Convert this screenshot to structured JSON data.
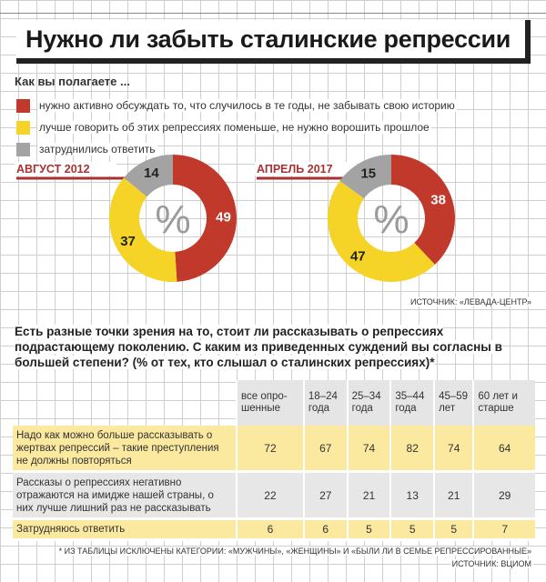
{
  "title": "Нужно ли забыть сталинские репрессии",
  "question": "Как вы полагаете ...",
  "colors": {
    "red": "#c0392b",
    "yellow": "#f5d327",
    "gray": "#a3a3a3"
  },
  "legend": [
    {
      "label": "нужно активно обсуждать то, что случилось в те годы, не забывать свою историю",
      "color": "#c0392b"
    },
    {
      "label": "лучше говорить об этих репрессиях поменьше, не нужно ворошить прошлое",
      "color": "#f5d327"
    },
    {
      "label": "затруднились ответить",
      "color": "#a3a3a3"
    }
  ],
  "chart_data": [
    {
      "type": "pie",
      "title": "АВГУСТ 2012",
      "center_label": "%",
      "slices": [
        {
          "label": "нужно активно обсуждать",
          "value": 49,
          "color": "#c0392b"
        },
        {
          "label": "лучше говорить поменьше",
          "value": 37,
          "color": "#f5d327"
        },
        {
          "label": "затруднились ответить",
          "value": 14,
          "color": "#a3a3a3"
        }
      ]
    },
    {
      "type": "pie",
      "title": "АПРЕЛЬ 2017",
      "center_label": "%",
      "slices": [
        {
          "label": "нужно активно обсуждать",
          "value": 38,
          "color": "#c0392b"
        },
        {
          "label": "лучше говорить поменьше",
          "value": 47,
          "color": "#f5d327"
        },
        {
          "label": "затруднились ответить",
          "value": 15,
          "color": "#a3a3a3"
        }
      ]
    },
    {
      "type": "table",
      "title": "Есть разные точки зрения на то, стоит ли рассказывать о репрессиях подрастающему поколению. С каким из приведенных суждений вы согласны в большей степени? (% от тех, кто слышал о сталинских репрессиях)*",
      "columns": [
        "все опро-шенные",
        "18–24 года",
        "25–34 года",
        "35–44 года",
        "45–59 лет",
        "60 лет и старше"
      ],
      "rows": [
        {
          "label": "Надо как можно больше рассказывать о жертвах репрессий – такие преступления не должны повторяться",
          "values": [
            72,
            67,
            74,
            82,
            74,
            64
          ]
        },
        {
          "label": "Рассказы о репрессиях негативно отражаются на имидже нашей страны, о них лучше лишний раз не рассказывать",
          "values": [
            22,
            27,
            21,
            13,
            21,
            29
          ]
        },
        {
          "label": "Затрудняюсь ответить",
          "values": [
            6,
            6,
            5,
            5,
            5,
            7
          ]
        }
      ]
    }
  ],
  "source1": "ИСТОЧНИК: «ЛЕВАДА-ЦЕНТР»",
  "footnote": "* ИЗ ТАБЛИЦЫ ИСКЛЮЧЕНЫ КАТЕГОРИИ: «МУЖЧИНЫ», «ЖЕНЩИНЫ» И «БЫЛИ ЛИ В СЕМЬЕ РЕПРЕССИРОВАННЫЕ»",
  "source2": "ИСТОЧНИК: ВЦИОМ"
}
